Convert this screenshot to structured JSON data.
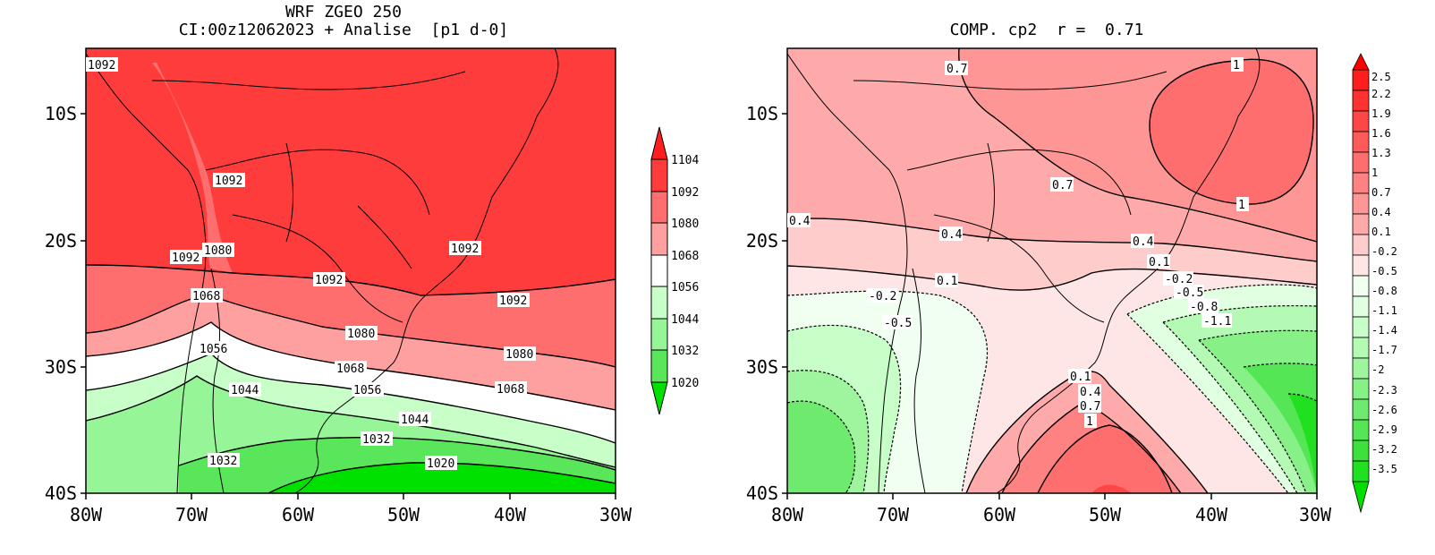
{
  "left_panel": {
    "title_line1": "WRF ZGEO 250",
    "title_line2": "CI:00z12062023 + Analise  [p1 d-0]",
    "lat_labels": [
      "10S",
      "20S",
      "30S",
      "40S"
    ],
    "lon_labels": [
      "80W",
      "70W",
      "60W",
      "50W",
      "40W",
      "30W"
    ],
    "colorbar_labels": [
      "1104",
      "1092",
      "1080",
      "1068",
      "1056",
      "1044",
      "1032",
      "1020"
    ],
    "colorbar_colors": [
      "#ff3c3c",
      "#ff6e6e",
      "#ffa0a0",
      "#ffc8c8",
      "#ffffff",
      "#c8ffc8",
      "#96f596",
      "#5ae65a",
      "#00e100"
    ],
    "contour_labels": [
      "1092",
      "1092",
      "1092",
      "1080",
      "1092",
      "1092",
      "1092",
      "1068",
      "1080",
      "1056",
      "1080",
      "1068",
      "1044",
      "1056",
      "1068",
      "1044",
      "1032",
      "1032",
      "1020"
    ]
  },
  "right_panel": {
    "title": "COMP. cp2  r =  0.71",
    "lat_labels": [
      "10S",
      "20S",
      "30S",
      "40S"
    ],
    "lon_labels": [
      "80W",
      "70W",
      "60W",
      "50W",
      "40W",
      "30W"
    ],
    "colorbar_labels": [
      "2.5",
      "2.2",
      "1.9",
      "1.6",
      "1.3",
      "1",
      "0.7",
      "0.4",
      "0.1",
      "-0.2",
      "-0.5",
      "-0.8",
      "-1.1",
      "-1.4",
      "-1.7",
      "-2",
      "-2.3",
      "-2.6",
      "-2.9",
      "-3.2",
      "-3.5"
    ],
    "colorbar_colors_pos": [
      "#ff1e1e",
      "#ff3232",
      "#ff4646",
      "#ff5a5a",
      "#ff6e6e",
      "#ff8282",
      "#ff9696",
      "#ffaaaa",
      "#ffcccc",
      "#ffe6e6"
    ],
    "colorbar_colors_neg": [
      "#f0fff0",
      "#e1ffe1",
      "#c8ffc8",
      "#b4fab4",
      "#9ef59e",
      "#87f087",
      "#6eeb6e",
      "#55e655",
      "#3ce13c",
      "#20e020",
      "#00e000"
    ],
    "contour_labels": [
      "0.7",
      "1",
      "0.7",
      "1",
      "0.4",
      "0.4",
      "0.4",
      "0.1",
      "0.1",
      "-0.2",
      "-0.2",
      "-0.5",
      "-0.8",
      "-1.1",
      "-0.5",
      "0.1",
      "0.4",
      "0.7",
      "1"
    ]
  },
  "colors": {
    "red_high": "#ff3c3c",
    "green_low": "#00e100",
    "white_mid": "#ffffff"
  }
}
